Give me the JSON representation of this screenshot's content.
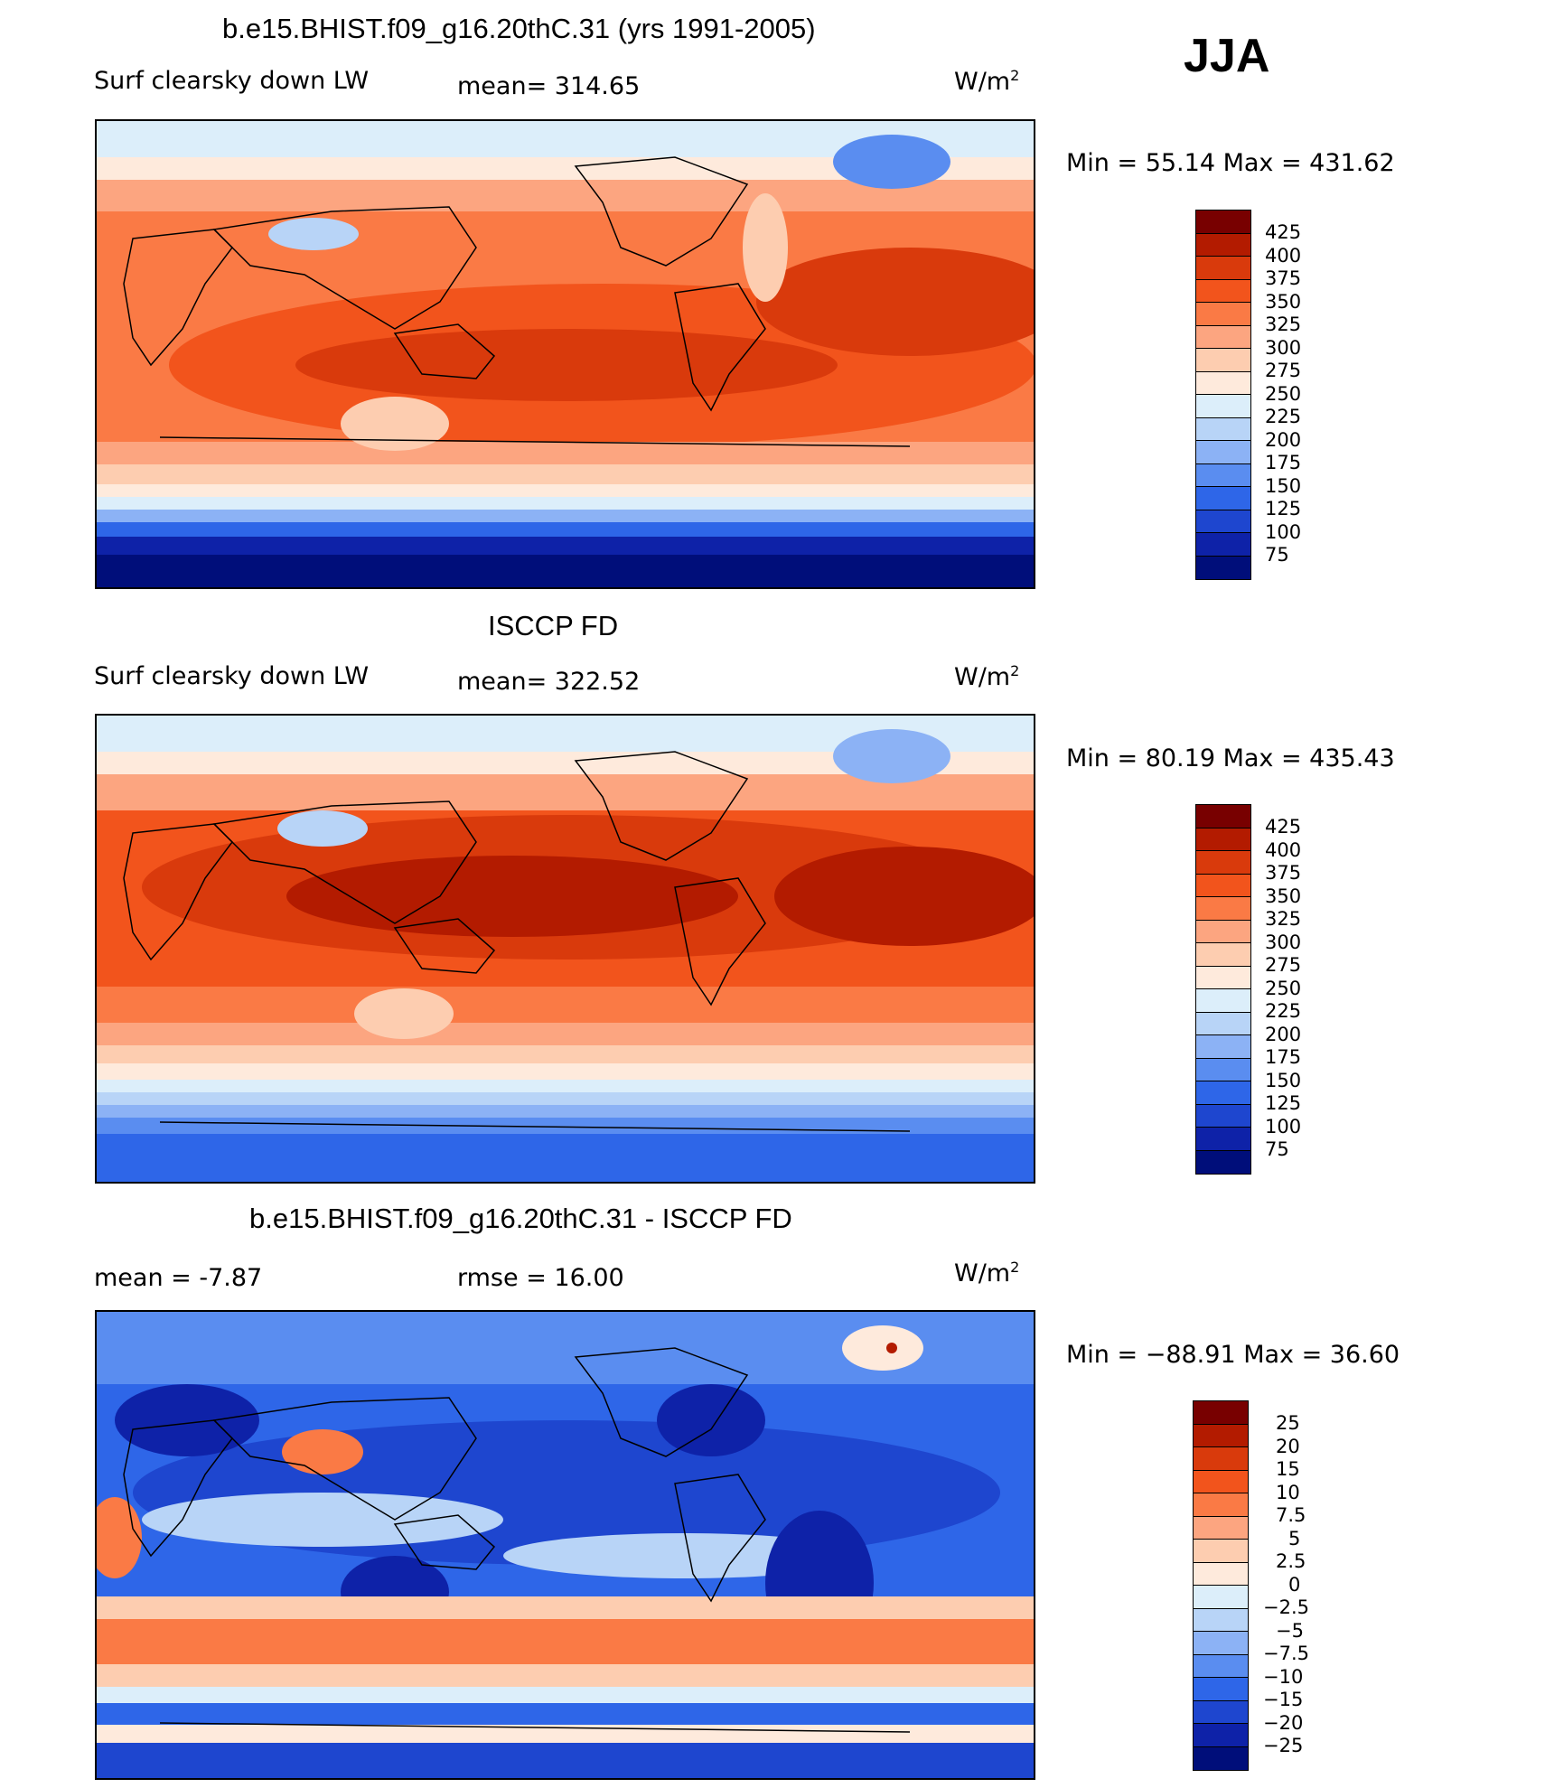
{
  "season": "JJA",
  "panels": [
    {
      "title": "b.e15.BHIST.f09_g16.20thC.31 (yrs 1991-2005)",
      "left_label": "Surf clearsky down LW",
      "center_label": "mean= 314.65",
      "units": "W/m",
      "units_exp": "2",
      "minmax": "Min =   55.14 Max = 431.62",
      "colorbar_labels": [
        "425",
        "400",
        "375",
        "350",
        "325",
        "300",
        "275",
        "250",
        "225",
        "200",
        "175",
        "150",
        "125",
        "100",
        "75"
      ]
    },
    {
      "title": "ISCCP FD",
      "left_label": "Surf clearsky down LW",
      "center_label": "mean= 322.52",
      "units": "W/m",
      "units_exp": "2",
      "minmax": "Min =   80.19 Max = 435.43",
      "colorbar_labels": [
        "425",
        "400",
        "375",
        "350",
        "325",
        "300",
        "275",
        "250",
        "225",
        "200",
        "175",
        "150",
        "125",
        "100",
        "75"
      ]
    },
    {
      "title": "b.e15.BHIST.f09_g16.20thC.31 - ISCCP FD",
      "left_label": "mean =   -7.87",
      "center_label": "rmse =   16.00",
      "units": "W/m",
      "units_exp": "2",
      "minmax": "Min = −88.91 Max =   36.60",
      "colorbar_labels": [
        "25",
        "20",
        "15",
        "10",
        "7.5",
        "5",
        "2.5",
        "0",
        "−2.5",
        "−5",
        "−7.5",
        "−10",
        "−15",
        "−20",
        "−25"
      ]
    }
  ],
  "colors": {
    "seq": [
      "#780000",
      "#b31b00",
      "#d93a0c",
      "#f2541c",
      "#fa7a45",
      "#fca580",
      "#fdcdb0",
      "#feeadc",
      "#dceefa",
      "#b8d4f7",
      "#8cb2f5",
      "#5a8df0",
      "#2e66e8",
      "#1e46cf",
      "#0e22a8",
      "#000e7a"
    ]
  }
}
